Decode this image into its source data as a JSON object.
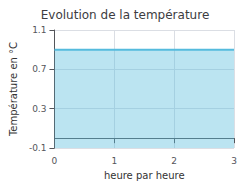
{
  "chart_data": {
    "type": "area",
    "title": "Evolution de la température",
    "xlabel": "heure par heure",
    "ylabel": "Température en °C",
    "x": [
      0,
      3
    ],
    "values": [
      0.9,
      0.9
    ],
    "color": "#55bbdd",
    "xlim": [
      0,
      3
    ],
    "ylim": [
      -0.1,
      1.1
    ],
    "xticks": [
      0,
      1,
      2,
      3
    ],
    "yticks": [
      -0.1,
      0.3,
      0.7,
      1.1
    ],
    "grid": true
  }
}
